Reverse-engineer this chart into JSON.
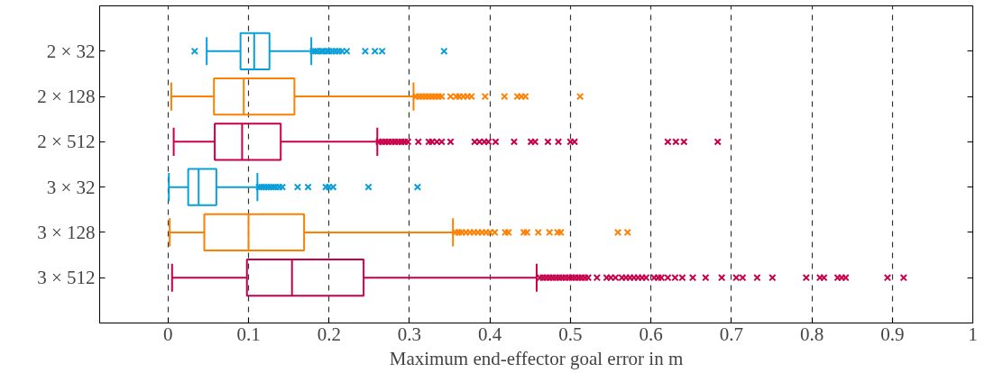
{
  "chart_data": {
    "type": "box",
    "orientation": "horizontal",
    "xlabel": "Maximum end-effector goal error in m",
    "categories": [
      "2 × 32",
      "2 × 128",
      "2 × 512",
      "3 × 32",
      "3 × 128",
      "3 × 512"
    ],
    "colors": [
      "#0a9fd8",
      "#ff8000",
      "#c8004b",
      "#0a9fd8",
      "#ff8000",
      "#c8004b"
    ],
    "xlim": [
      -0.085,
      1
    ],
    "xticks": [
      0,
      0.1,
      0.2,
      0.3,
      0.4,
      0.5,
      0.6,
      0.7,
      0.8,
      0.9,
      1
    ],
    "grid": "x",
    "marker": "cross",
    "boxes": [
      {
        "low": 0.048,
        "q1": 0.09,
        "median": 0.107,
        "q3": 0.126,
        "high": 0.178,
        "outliers": [
          0.033,
          0.18,
          0.183,
          0.186,
          0.19,
          0.193,
          0.197,
          0.2,
          0.204,
          0.208,
          0.212,
          0.216,
          0.222,
          0.245,
          0.257,
          0.266,
          0.343
        ]
      },
      {
        "low": 0.004,
        "q1": 0.057,
        "median": 0.094,
        "q3": 0.157,
        "high": 0.305,
        "outliers": [
          0.308,
          0.312,
          0.316,
          0.32,
          0.324,
          0.328,
          0.332,
          0.336,
          0.34,
          0.351,
          0.358,
          0.362,
          0.367,
          0.372,
          0.377,
          0.394,
          0.418,
          0.434,
          0.439,
          0.444,
          0.512
        ]
      },
      {
        "low": 0.007,
        "q1": 0.058,
        "median": 0.092,
        "q3": 0.14,
        "high": 0.26,
        "outliers": [
          0.262,
          0.266,
          0.27,
          0.274,
          0.278,
          0.282,
          0.286,
          0.29,
          0.294,
          0.298,
          0.311,
          0.324,
          0.328,
          0.334,
          0.34,
          0.351,
          0.381,
          0.387,
          0.393,
          0.398,
          0.407,
          0.43,
          0.451,
          0.456,
          0.472,
          0.485,
          0.5,
          0.505,
          0.621,
          0.631,
          0.641,
          0.683
        ]
      },
      {
        "low": 0.001,
        "q1": 0.025,
        "median": 0.038,
        "q3": 0.06,
        "high": 0.111,
        "outliers": [
          0.113,
          0.116,
          0.119,
          0.122,
          0.125,
          0.128,
          0.131,
          0.134,
          0.138,
          0.142,
          0.161,
          0.174,
          0.196,
          0.2,
          0.205,
          0.249,
          0.31
        ]
      },
      {
        "low": 0.002,
        "q1": 0.045,
        "median": 0.1,
        "q3": 0.169,
        "high": 0.354,
        "outliers": [
          0.357,
          0.361,
          0.365,
          0.37,
          0.375,
          0.38,
          0.385,
          0.39,
          0.395,
          0.4,
          0.406,
          0.419,
          0.423,
          0.442,
          0.446,
          0.46,
          0.474,
          0.484,
          0.488,
          0.559,
          0.571
        ]
      },
      {
        "low": 0.005,
        "q1": 0.098,
        "median": 0.154,
        "q3": 0.243,
        "high": 0.458,
        "outliers": [
          0.462,
          0.466,
          0.47,
          0.474,
          0.478,
          0.482,
          0.486,
          0.49,
          0.494,
          0.498,
          0.502,
          0.506,
          0.51,
          0.514,
          0.518,
          0.522,
          0.533,
          0.545,
          0.55,
          0.556,
          0.564,
          0.569,
          0.574,
          0.579,
          0.584,
          0.589,
          0.594,
          0.604,
          0.609,
          0.613,
          0.621,
          0.63,
          0.639,
          0.652,
          0.668,
          0.688,
          0.706,
          0.714,
          0.732,
          0.751,
          0.793,
          0.81,
          0.815,
          0.832,
          0.837,
          0.842,
          0.894,
          0.914
        ]
      }
    ]
  }
}
